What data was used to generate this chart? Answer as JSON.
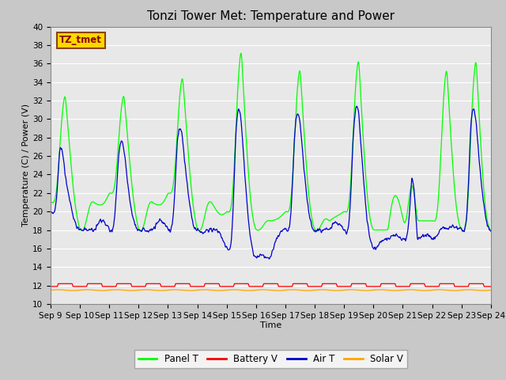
{
  "title": "Tonzi Tower Met: Temperature and Power",
  "xlabel": "Time",
  "ylabel": "Temperature (C) / Power (V)",
  "ylim": [
    10,
    40
  ],
  "yticks": [
    10,
    12,
    14,
    16,
    18,
    20,
    22,
    24,
    26,
    28,
    30,
    32,
    34,
    36,
    38,
    40
  ],
  "start_day": 9,
  "end_day": 24,
  "num_points": 4000,
  "panel_color": "#00FF00",
  "battery_color": "#FF0000",
  "air_color": "#0000CC",
  "solar_color": "#FFA500",
  "bg_color": "#E8E8E8",
  "grid_color": "#FFFFFF",
  "label_box_text": "TZ_tmet",
  "title_fontsize": 11,
  "axis_fontsize": 8,
  "tick_fontsize": 7.5
}
